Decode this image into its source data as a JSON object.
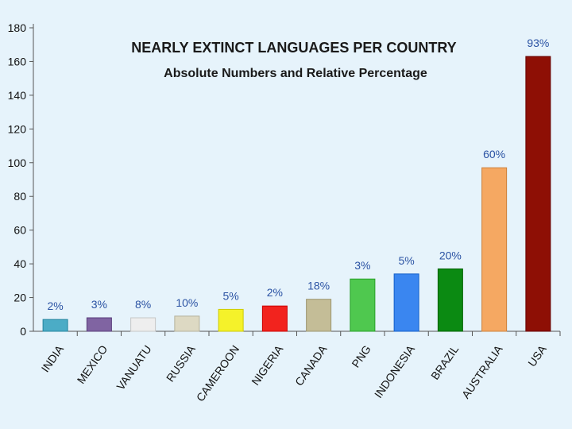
{
  "chart_data": {
    "type": "bar",
    "title": "NEARLY EXTINCT LANGUAGES PER COUNTRY",
    "subtitle": "Absolute Numbers and Relative Percentage",
    "xlabel": "",
    "ylabel": "",
    "ylim": [
      0,
      180
    ],
    "yticks": [
      0,
      20,
      40,
      60,
      80,
      100,
      120,
      140,
      160,
      180
    ],
    "grid": false,
    "categories": [
      "INDIA",
      "MEXICO",
      "VANUATU",
      "RUSSIA",
      "CAMEROON",
      "NIGERIA",
      "CANADA",
      "PNG",
      "INDONESIA",
      "BRAZIL",
      "AUSTRALIA",
      "USA"
    ],
    "values": [
      7,
      8,
      8,
      9,
      13,
      15,
      19,
      31,
      34,
      37,
      97,
      163
    ],
    "percent_labels": [
      "2%",
      "3%",
      "8%",
      "10%",
      "5%",
      "2%",
      "18%",
      "3%",
      "5%",
      "20%",
      "60%",
      "93%"
    ],
    "colors": [
      "#4bacc6",
      "#8064a2",
      "#eeeeee",
      "#ddd9c3",
      "#f5f22a",
      "#f2231e",
      "#c4bd97",
      "#4fc84f",
      "#3a86f0",
      "#0b8a12",
      "#f5a862",
      "#8e0f05"
    ]
  }
}
